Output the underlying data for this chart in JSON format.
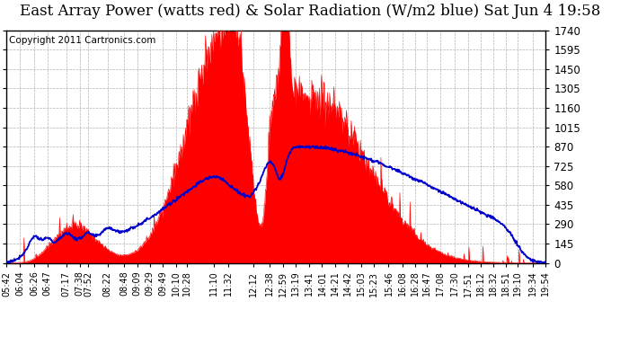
{
  "title": "East Array Power (watts red) & Solar Radiation (W/m2 blue) Sat Jun 4 19:58",
  "copyright": "Copyright 2011 Cartronics.com",
  "bg_color": "#ffffff",
  "plot_bg_color": "#ffffff",
  "grid_color": "#aaaaaa",
  "red_color": "#ff0000",
  "blue_color": "#0000cc",
  "ymin": 0.0,
  "ymax": 1740.0,
  "yticks": [
    0.0,
    145.0,
    290.0,
    435.0,
    580.0,
    725.0,
    870.0,
    1015.0,
    1160.0,
    1305.0,
    1450.0,
    1595.0,
    1740.0
  ],
  "xtick_labels": [
    "05:42",
    "06:04",
    "06:26",
    "06:47",
    "07:17",
    "07:38",
    "07:52",
    "08:22",
    "08:48",
    "09:09",
    "09:29",
    "09:49",
    "10:10",
    "10:28",
    "11:10",
    "11:32",
    "12:12",
    "12:38",
    "12:59",
    "13:19",
    "13:41",
    "14:01",
    "14:21",
    "14:42",
    "15:03",
    "15:23",
    "15:46",
    "16:08",
    "16:28",
    "16:47",
    "17:08",
    "17:30",
    "17:51",
    "18:12",
    "18:32",
    "18:51",
    "19:10",
    "19:34",
    "19:54"
  ],
  "title_fontsize": 12,
  "copyright_fontsize": 7.5,
  "tick_fontsize": 7,
  "ytick_fontsize": 8.5
}
